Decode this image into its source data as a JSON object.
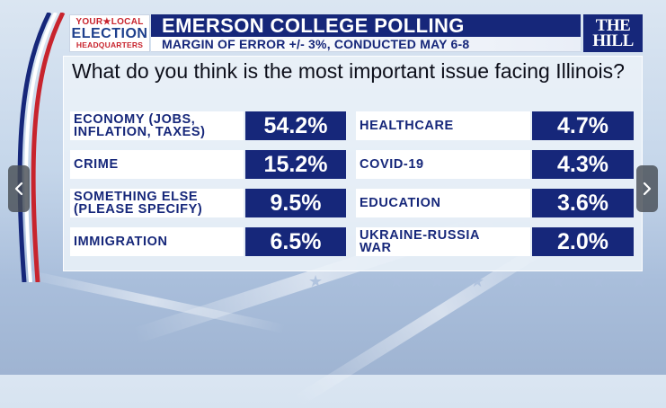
{
  "header": {
    "logo": {
      "line1": "YOUR★LOCAL",
      "line2": "ELECTION",
      "line3": "HEADQUARTERS"
    },
    "title": "EMERSON COLLEGE POLLING",
    "subtitle": "MARGIN OF ERROR +/- 3%, CONDUCTED MAY 6-8",
    "brand": {
      "line1": "THE",
      "line2": "HILL"
    }
  },
  "question": "What do you think is the most important issue facing Illinois?",
  "results_left": [
    {
      "label_lines": [
        "ECONOMY (JOBS,",
        "INFLATION, TAXES)"
      ],
      "value": "54.2%"
    },
    {
      "label_lines": [
        "CRIME"
      ],
      "value": "15.2%"
    },
    {
      "label_lines": [
        "SOMETHING ELSE",
        "(PLEASE SPECIFY)"
      ],
      "value": "9.5%"
    },
    {
      "label_lines": [
        "IMMIGRATION"
      ],
      "value": "6.5%"
    }
  ],
  "results_right": [
    {
      "label_lines": [
        "HEALTHCARE"
      ],
      "value": "4.7%"
    },
    {
      "label_lines": [
        "COVID-19"
      ],
      "value": "4.3%"
    },
    {
      "label_lines": [
        "EDUCATION"
      ],
      "value": "3.6%"
    },
    {
      "label_lines": [
        "UKRAINE-RUSSIA",
        "WAR"
      ],
      "value": "2.0%"
    }
  ],
  "nav": {
    "prev_icon": "chevron-left-icon",
    "next_icon": "chevron-right-icon"
  },
  "colors": {
    "navy": "#16277a",
    "red": "#c8242d",
    "label_bg": "#ffffff"
  }
}
